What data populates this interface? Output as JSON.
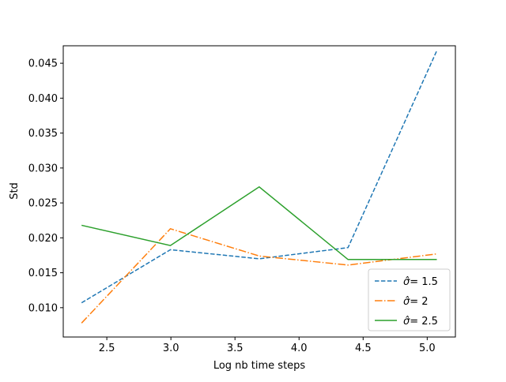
{
  "chart_data": {
    "type": "line",
    "title": "",
    "xlabel": "Log nb time  steps",
    "ylabel": "Std",
    "xlim": [
      2.16,
      5.22
    ],
    "ylim": [
      0.0058,
      0.0475
    ],
    "xticks": [
      2.5,
      3.0,
      3.5,
      4.0,
      4.5,
      5.0
    ],
    "xtick_labels": [
      "2.5",
      "3.0",
      "3.5",
      "4.0",
      "4.5",
      "5.0"
    ],
    "yticks": [
      0.01,
      0.015,
      0.02,
      0.025,
      0.03,
      0.035,
      0.04,
      0.045
    ],
    "ytick_labels": [
      "0.010",
      "0.015",
      "0.020",
      "0.025",
      "0.030",
      "0.035",
      "0.040",
      "0.045"
    ],
    "x": [
      2.303,
      2.996,
      3.689,
      4.382,
      5.075
    ],
    "legend_position": "lower right",
    "grid": false,
    "series": [
      {
        "name": "1.5",
        "values": [
          0.0107,
          0.0183,
          0.017,
          0.0186,
          0.0468
        ],
        "color": "#1f77b4",
        "dash": "dashed"
      },
      {
        "name": "2",
        "values": [
          0.0078,
          0.0213,
          0.0174,
          0.0161,
          0.0177
        ],
        "color": "#ff7f0e",
        "dash": "dashdot"
      },
      {
        "name": "2.5",
        "values": [
          0.0218,
          0.0189,
          0.0273,
          0.0169,
          0.0169
        ],
        "color": "#2ca02c",
        "dash": "solid"
      }
    ]
  }
}
